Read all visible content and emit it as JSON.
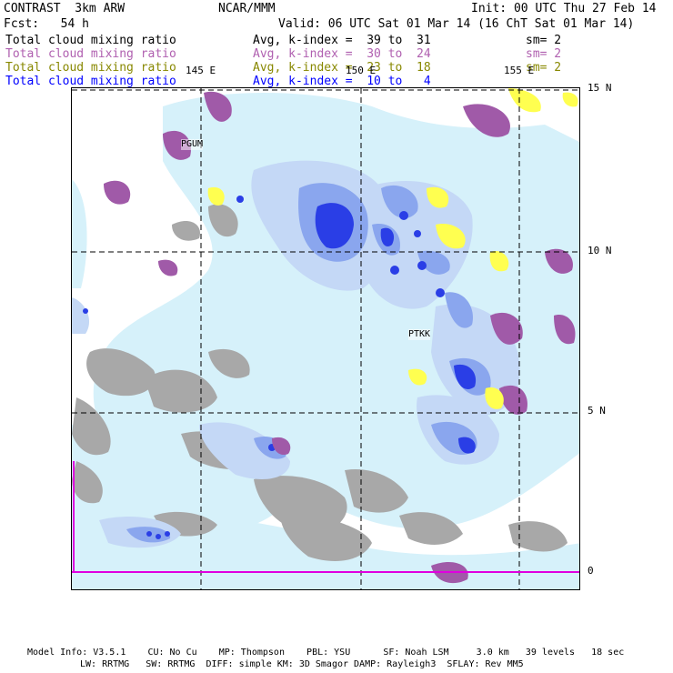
{
  "header": {
    "model": "CONTRAST  3km ARW",
    "org": "NCAR/MMM",
    "init": "Init: 00 UTC Thu 27 Feb 14",
    "fcst": "Fcst:   54 h",
    "valid": "Valid: 06 UTC Sat 01 Mar 14 (16 ChT Sat 01 Mar 14)"
  },
  "legend": [
    {
      "label": "Total cloud mixing ratio",
      "kindex": "Avg, k-index =  39 to  31",
      "sm": "sm= 2",
      "color": "#000000"
    },
    {
      "label": "Total cloud mixing ratio",
      "kindex": "Avg, k-index =  30 to  24",
      "sm": "sm= 2",
      "color": "#b060b0"
    },
    {
      "label": "Total cloud mixing ratio",
      "kindex": "Avg, k-index =  23 to  18",
      "sm": "sm= 2",
      "color": "#888800"
    },
    {
      "label": "Total cloud mixing ratio",
      "kindex": "Avg, k-index =  10 to   4",
      "sm": "",
      "color": "#0000ff"
    }
  ],
  "axes": {
    "lon_labels": [
      "145 E",
      "150 E",
      "155 E"
    ],
    "lat_labels": [
      "15 N",
      "10 N",
      "5 N",
      "0"
    ]
  },
  "stations": [
    "PGUM",
    "PTKK"
  ],
  "footer": {
    "line1": "Model Info: V3.5.1    CU: No Cu    MP: Thompson    PBL: YSU      SF: Noah LSM     3.0 km   39 levels   18 sec",
    "line2": "LW: RRTMG   SW: RRTMG  DIFF: simple KM: 3D Smagor DAMP: Rayleigh3  SFLAY: Rev MM5"
  },
  "colors": {
    "light_cyan": "#d6f1fa",
    "pale_blue": "#c4d8f6",
    "blue": "#8aa6ee",
    "deep_blue": "#2a3ee6",
    "gray": "#a8a8a8",
    "purple": "#a05aa8",
    "yellow": "#ffff50",
    "magenta": "#e000e0"
  }
}
